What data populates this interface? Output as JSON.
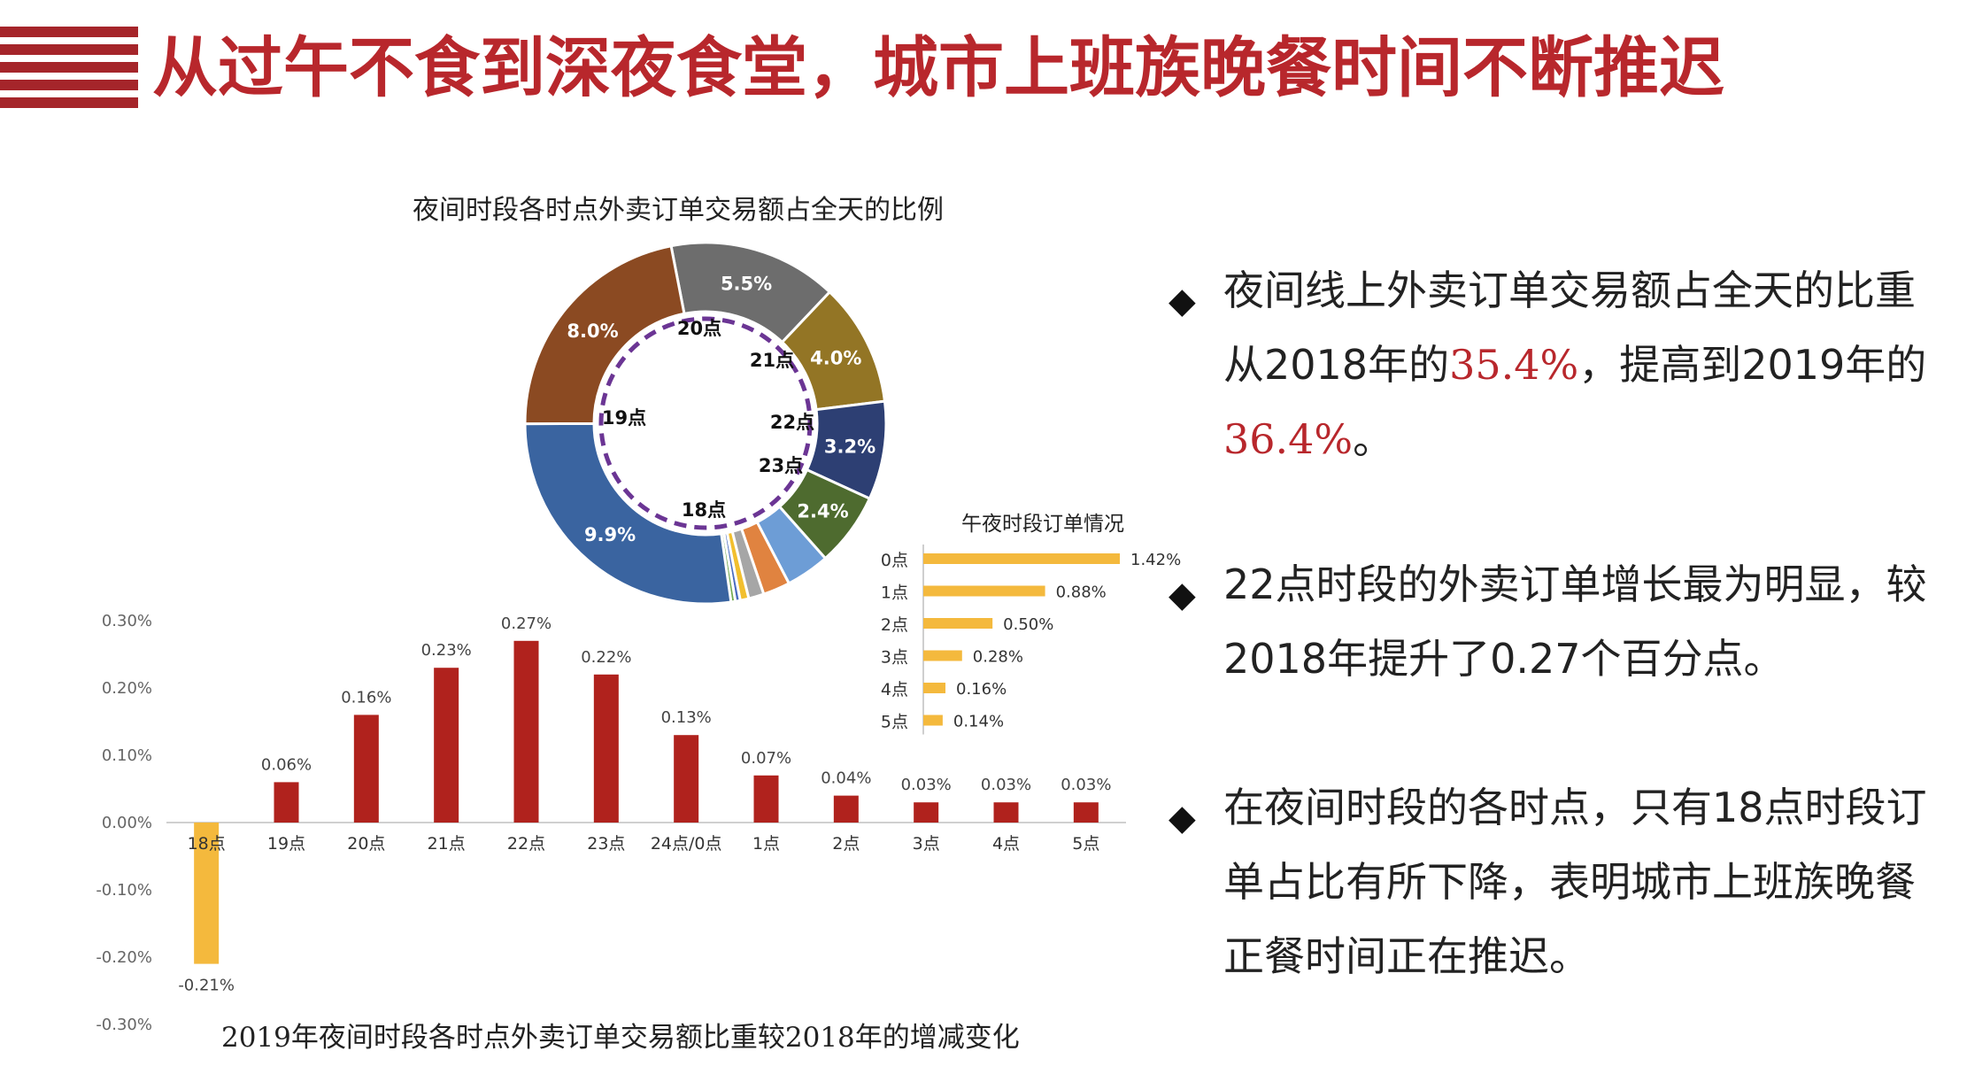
{
  "title": "从过午不食到深夜食堂，城市上班族晚餐时间不断推迟",
  "colors": {
    "accent": "#b8272c",
    "bar_positive": "#b0221d",
    "bar_negative": "#f4b93d",
    "hbar": "#f4b93d",
    "ring_dash": "#6b3594"
  },
  "chart_data": [
    {
      "type": "pie",
      "title": "夜间时段各时点外卖订单交易额占全天的比例",
      "slices": [
        {
          "label": "20点",
          "value": 5.5,
          "value_label": "5.5%",
          "color": "#6d6d6d"
        },
        {
          "label": "21点",
          "value": 4.0,
          "value_label": "4.0%",
          "color": "#937525"
        },
        {
          "label": "22点",
          "value": 3.2,
          "value_label": "3.2%",
          "color": "#2d3f73"
        },
        {
          "label": "23点",
          "value": 2.4,
          "value_label": "2.4%",
          "color": "#4e6b2f"
        },
        {
          "label": "0点",
          "value": 1.42,
          "value_label": "",
          "color": "#6d9dd6"
        },
        {
          "label": "1点",
          "value": 0.88,
          "value_label": "",
          "color": "#e08340"
        },
        {
          "label": "2点",
          "value": 0.5,
          "value_label": "",
          "color": "#a6a6a6"
        },
        {
          "label": "3点",
          "value": 0.28,
          "value_label": "",
          "color": "#f2bf2e"
        },
        {
          "label": "4点",
          "value": 0.16,
          "value_label": "",
          "color": "#4a6cc0"
        },
        {
          "label": "5点",
          "value": 0.14,
          "value_label": "",
          "color": "#6fa84c"
        },
        {
          "label": "18点",
          "value": 9.9,
          "value_label": "9.9%",
          "color": "#3a64a0"
        },
        {
          "label": "19点",
          "value": 8.0,
          "value_label": "8.0%",
          "color": "#8b4a22"
        }
      ],
      "inner_labels": [
        "20点",
        "21点",
        "22点",
        "23点",
        "18点",
        "19点"
      ]
    },
    {
      "type": "bar",
      "orientation": "horizontal",
      "title": "午夜时段订单情况",
      "categories": [
        "0点",
        "1点",
        "2点",
        "3点",
        "4点",
        "5点"
      ],
      "values": [
        1.42,
        0.88,
        0.5,
        0.28,
        0.16,
        0.14
      ],
      "value_labels": [
        "1.42%",
        "0.88%",
        "0.50%",
        "0.28%",
        "0.16%",
        "0.14%"
      ]
    },
    {
      "type": "bar",
      "title": "2019年夜间时段各时点外卖订单交易额比重较2018年的增减变化",
      "categories": [
        "18点",
        "19点",
        "20点",
        "21点",
        "22点",
        "23点",
        "24点/0点",
        "1点",
        "2点",
        "3点",
        "4点",
        "5点"
      ],
      "values": [
        -0.21,
        0.06,
        0.16,
        0.23,
        0.27,
        0.22,
        0.13,
        0.07,
        0.04,
        0.03,
        0.03,
        0.03
      ],
      "value_labels": [
        "-0.21%",
        "0.06%",
        "0.16%",
        "0.23%",
        "0.27%",
        "0.22%",
        "0.13%",
        "0.07%",
        "0.04%",
        "0.03%",
        "0.03%",
        "0.03%"
      ],
      "ylim": [
        -0.3,
        0.3
      ],
      "yticks": [
        "0.30%",
        "0.20%",
        "0.10%",
        "0.00%",
        "-0.10%",
        "-0.20%",
        "-0.30%"
      ],
      "ytick_values": [
        0.3,
        0.2,
        0.1,
        0.0,
        -0.1,
        -0.2,
        -0.3
      ]
    }
  ],
  "bullets": {
    "b1": {
      "pre": "夜间线上外卖订单交易额占全天的比重从2018年的",
      "v1": "35.4%",
      "mid": "，提高到2019年的",
      "v2": "36.4%",
      "post": "。"
    },
    "b2": {
      "text": "22点时段的外卖订单增长最为明显，较2018年提升了0.27个百分点。"
    },
    "b3": {
      "text": "在夜间时段的各时点，只有18点时段订单占比有所下降，表明城市上班族晚餐正餐时间正在推迟。"
    }
  }
}
